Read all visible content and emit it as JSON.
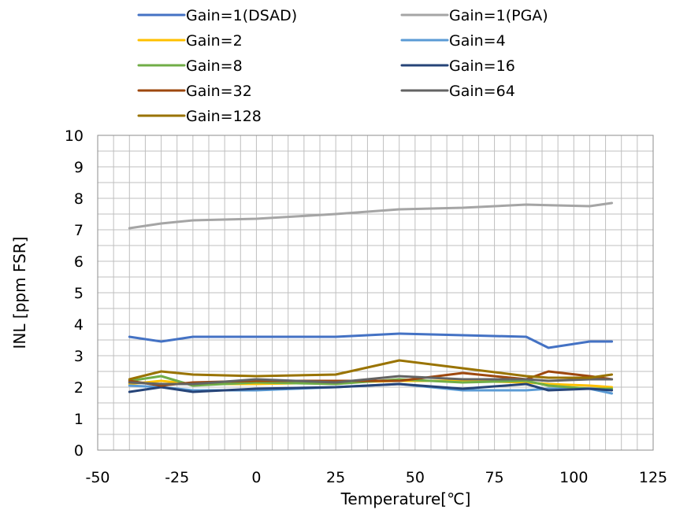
{
  "chart_data": {
    "type": "line",
    "xlabel": "Temperature[℃]",
    "ylabel": "INL [ppm FSR]",
    "xlim": [
      -50,
      125
    ],
    "ylim": [
      0,
      10
    ],
    "xticks": [
      -50,
      -25,
      0,
      25,
      50,
      75,
      100,
      125
    ],
    "yticks": [
      0,
      1,
      2,
      3,
      4,
      5,
      6,
      7,
      8,
      9,
      10
    ],
    "grid": true,
    "legend_position": "top",
    "x": [
      -40,
      -30,
      -20,
      0,
      25,
      45,
      65,
      85,
      92,
      105,
      112
    ],
    "series": [
      {
        "name": "Gain=1(DSAD)",
        "color": "#4472c4",
        "values": [
          3.6,
          3.45,
          3.6,
          3.6,
          3.6,
          3.7,
          3.65,
          3.6,
          3.25,
          3.45,
          3.45
        ]
      },
      {
        "name": "Gain=1(PGA)",
        "color": "#a5a5a5",
        "values": [
          7.05,
          7.2,
          7.3,
          7.35,
          7.5,
          7.65,
          7.7,
          7.8,
          7.78,
          7.75,
          7.85
        ]
      },
      {
        "name": "Gain=2",
        "color": "#ffc000",
        "values": [
          2.1,
          2.2,
          2.1,
          2.1,
          2.15,
          2.2,
          2.2,
          2.15,
          2.1,
          2.05,
          2.0
        ]
      },
      {
        "name": "Gain=4",
        "color": "#5b9bd5",
        "values": [
          2.05,
          2.0,
          1.9,
          1.9,
          2.0,
          2.1,
          1.9,
          1.9,
          1.95,
          1.95,
          1.8
        ]
      },
      {
        "name": "Gain=8",
        "color": "#70ad47",
        "values": [
          2.2,
          2.35,
          2.05,
          2.15,
          2.1,
          2.25,
          2.15,
          2.2,
          2.05,
          1.95,
          1.95
        ]
      },
      {
        "name": "Gain=16",
        "color": "#264478",
        "values": [
          1.85,
          2.0,
          1.85,
          1.95,
          2.0,
          2.1,
          1.95,
          2.1,
          1.9,
          1.95,
          1.9
        ]
      },
      {
        "name": "Gain=32",
        "color": "#9e480e",
        "values": [
          2.2,
          2.05,
          2.15,
          2.2,
          2.2,
          2.2,
          2.45,
          2.25,
          2.5,
          2.35,
          2.25
        ]
      },
      {
        "name": "Gain=64",
        "color": "#636363",
        "values": [
          2.15,
          2.1,
          2.1,
          2.25,
          2.15,
          2.35,
          2.25,
          2.25,
          2.2,
          2.25,
          2.25
        ]
      },
      {
        "name": "Gain=128",
        "color": "#997300",
        "values": [
          2.25,
          2.5,
          2.4,
          2.35,
          2.4,
          2.85,
          2.6,
          2.35,
          2.3,
          2.3,
          2.4
        ]
      }
    ]
  }
}
